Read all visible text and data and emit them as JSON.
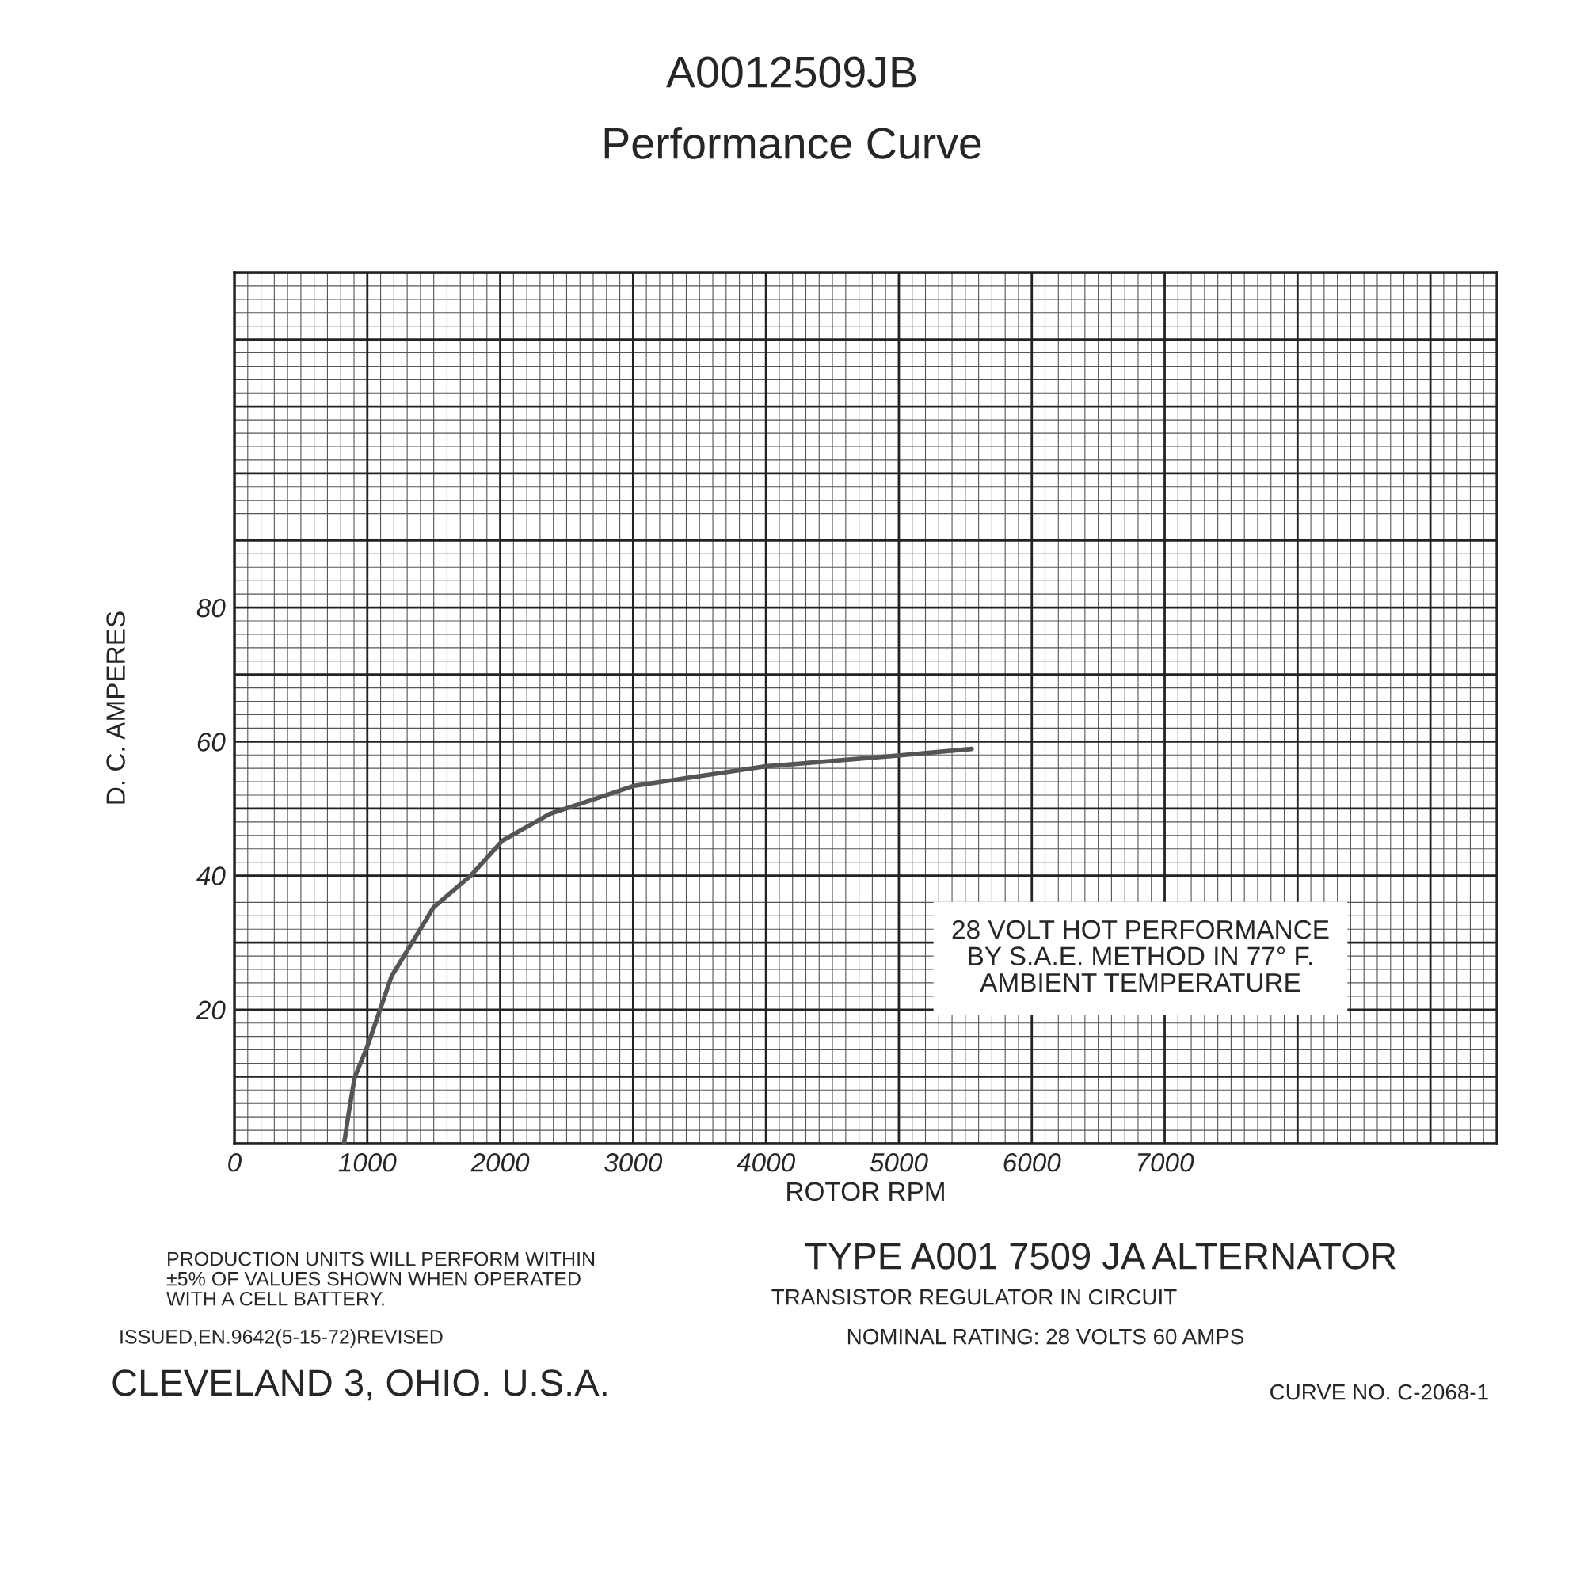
{
  "chart_data": {
    "type": "line",
    "title": "A0012509JB",
    "subtitle": "Performance Curve",
    "xlabel": "ROTOR RPM",
    "ylabel": "D. C. AMPERES",
    "series": [
      {
        "color": "#555555",
        "x": [
          825,
          865,
          905,
          1004,
          1183,
          1500,
          1778,
          2016,
          2373,
          3008,
          4000,
          4992,
          5548
        ],
        "values": [
          0,
          5.2,
          9.9,
          14.7,
          25,
          35.3,
          40,
          45.2,
          49.2,
          53.4,
          56.3,
          57.9,
          58.9
        ]
      }
    ],
    "xlim": [
      0,
      9500
    ],
    "ylim": [
      0,
      130
    ],
    "xticks": [
      0,
      1000,
      2000,
      3000,
      4000,
      5000,
      6000,
      7000,
      {
        "value": 8000,
        "label": null
      },
      {
        "value": 9000,
        "label": null
      }
    ],
    "yticks": [
      {
        "value": 0,
        "label": null
      },
      {
        "value": 10,
        "label": null
      },
      20,
      {
        "value": 30,
        "label": null
      },
      40,
      {
        "value": 50,
        "label": null
      },
      60,
      {
        "value": 70,
        "label": null
      },
      80,
      {
        "value": 90,
        "label": null
      },
      {
        "value": 100,
        "label": null
      },
      {
        "value": 110,
        "label": null
      },
      {
        "value": 120,
        "label": null
      },
      {
        "value": 130,
        "label": null
      }
    ],
    "grid": true,
    "marker": "none",
    "line_style": "solid",
    "legend": false,
    "annotations": [
      "28 VOLT HOT PERFORMANCE\nBY S.A.E. METHOD IN 77° F.\nAMBIENT TEMPERATURE",
      "PRODUCTION UNITS WILL PERFORM WITHIN\n±5% OF VALUES SHOWN WHEN OPERATED\nWITH A CELL BATTERY.",
      "TYPE A001 7509 JA ALTERNATOR",
      "TRANSISTOR REGULATOR IN CIRCUIT",
      "ISSUED,EN.9642(5-15-72)REVISED",
      "NOMINAL RATING: 28 VOLTS 60 AMPS",
      "CLEVELAND 3, OHIO. U.S.A.",
      "CURVE NO. C-2068-1"
    ]
  }
}
